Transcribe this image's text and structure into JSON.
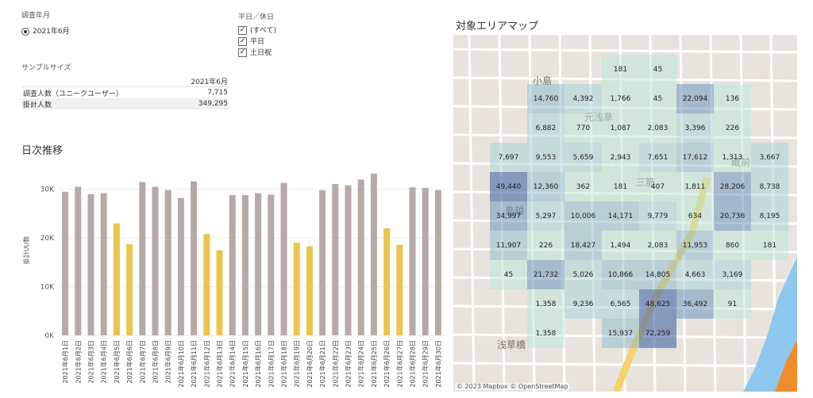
{
  "filters": {
    "month_label": "調査年月",
    "month_value": "2021年6月",
    "daytype_label": "平日／休日",
    "daytype_options": [
      "(すべて)",
      "平日",
      "土日祝"
    ]
  },
  "sample": {
    "title": "サンプルサイズ",
    "column": "2021年6月",
    "rows": [
      {
        "label": "調査人数（ユニークユーザー）",
        "value": "7,715"
      },
      {
        "label": "掛計人数",
        "value": "349,295"
      }
    ]
  },
  "daily": {
    "title": "日次推移",
    "ylabel": "掛計UU数",
    "yticks": [
      "30K",
      "20K",
      "10K",
      "0K"
    ],
    "colors": {
      "weekday": "#b5aaa5",
      "weekend": "#eac54f"
    }
  },
  "chart_data": {
    "type": "bar",
    "title": "日次推移",
    "xlabel": "",
    "ylabel": "掛計UU数",
    "ylim": [
      0,
      35000
    ],
    "categories": [
      "2021年6月1日",
      "2021年6月2日",
      "2021年6月3日",
      "2021年6月4日",
      "2021年6月5日",
      "2021年6月6日",
      "2021年6月7日",
      "2021年6月8日",
      "2021年6月9日",
      "2021年6月10日",
      "2021年6月11日",
      "2021年6月12日",
      "2021年6月13日",
      "2021年6月14日",
      "2021年6月15日",
      "2021年6月16日",
      "2021年6月17日",
      "2021年6月18日",
      "2021年6月19日",
      "2021年6月20日",
      "2021年6月21日",
      "2021年6月22日",
      "2021年6月23日",
      "2021年6月24日",
      "2021年6月25日",
      "2021年6月26日",
      "2021年6月27日",
      "2021年6月28日",
      "2021年6月29日",
      "2021年6月30日"
    ],
    "values": [
      29500,
      30500,
      29000,
      29200,
      23000,
      18700,
      31500,
      30500,
      29800,
      28200,
      31600,
      20800,
      17500,
      28800,
      28800,
      29200,
      28900,
      31300,
      19000,
      18300,
      29800,
      31100,
      30800,
      32000,
      33200,
      22000,
      18600,
      30400,
      30300,
      29800
    ],
    "day_type": [
      "weekday",
      "weekday",
      "weekday",
      "weekday",
      "weekend",
      "weekend",
      "weekday",
      "weekday",
      "weekday",
      "weekday",
      "weekday",
      "weekend",
      "weekend",
      "weekday",
      "weekday",
      "weekday",
      "weekday",
      "weekday",
      "weekend",
      "weekend",
      "weekday",
      "weekday",
      "weekday",
      "weekday",
      "weekday",
      "weekend",
      "weekend",
      "weekday",
      "weekday",
      "weekday"
    ]
  },
  "map": {
    "title": "対象エリアマップ",
    "attribution": "© 2023 Mapbox © OpenStreetMap",
    "place_labels": [
      "小島",
      "鳥越",
      "浅草橋",
      "蔵前",
      "三筋",
      "元浅草"
    ],
    "grid": [
      [
        null,
        null,
        null,
        null,
        "181",
        "45",
        null,
        null,
        null,
        null,
        null
      ],
      [
        null,
        null,
        "14,760",
        "4,392",
        "1,766",
        "45",
        "22,094",
        "136",
        null,
        null,
        null
      ],
      [
        null,
        null,
        "6,882",
        "770",
        "1,087",
        "2,083",
        "3,396",
        "226",
        null,
        null,
        null
      ],
      [
        null,
        "7,697",
        "9,553",
        "5,659",
        "2,943",
        "7,651",
        "17,612",
        "1,313",
        "3,667",
        null,
        null
      ],
      [
        null,
        "49,440",
        "12,360",
        "362",
        "181",
        "407",
        "1,811",
        "28,206",
        "8,738",
        null,
        null
      ],
      [
        null,
        "34,997",
        "5,297",
        "10,006",
        "14,171",
        "9,779",
        "634",
        "20,736",
        "8,195",
        null,
        null
      ],
      [
        null,
        "11,907",
        "226",
        "18,427",
        "1,494",
        "2,083",
        "11,953",
        "860",
        "181",
        null,
        null
      ],
      [
        null,
        "45",
        "21,732",
        "5,026",
        "10,866",
        "14,805",
        "4,663",
        "3,169",
        null,
        null,
        null
      ],
      [
        null,
        null,
        "1,358",
        "9,236",
        "6,565",
        "48,625",
        "36,492",
        "91",
        null,
        null,
        null
      ],
      [
        null,
        null,
        "1,358",
        null,
        "15,937",
        "72,259",
        null,
        null,
        null,
        null,
        null
      ]
    ]
  }
}
